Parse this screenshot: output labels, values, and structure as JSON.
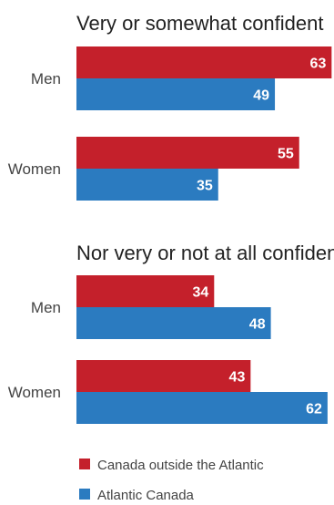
{
  "chart_data": [
    {
      "type": "bar",
      "orientation": "horizontal",
      "title": "Very or somewhat confident",
      "categories": [
        "Men",
        "Women"
      ],
      "series": [
        {
          "name": "Canada outside the Atlantic",
          "values": [
            63,
            55
          ]
        },
        {
          "name": "Atlantic Canada",
          "values": [
            49,
            35
          ]
        }
      ],
      "xlim": [
        0,
        66
      ],
      "grid": false
    },
    {
      "type": "bar",
      "orientation": "horizontal",
      "title": "Nor very or not at all confident",
      "categories": [
        "Men",
        "Women"
      ],
      "series": [
        {
          "name": "Canada outside the Atlantic",
          "values": [
            34,
            43
          ]
        },
        {
          "name": "Atlantic Canada",
          "values": [
            48,
            62
          ]
        }
      ],
      "xlim": [
        0,
        66
      ],
      "grid": false
    }
  ],
  "legend": {
    "placement": "bottom-left",
    "items": [
      {
        "label": "Canada outside the Atlantic",
        "color": "#c4202b"
      },
      {
        "label": "Atlantic Canada",
        "color": "#2b7bc0"
      }
    ]
  },
  "colors": {
    "series": [
      "#c4202b",
      "#2b7bc0"
    ]
  }
}
